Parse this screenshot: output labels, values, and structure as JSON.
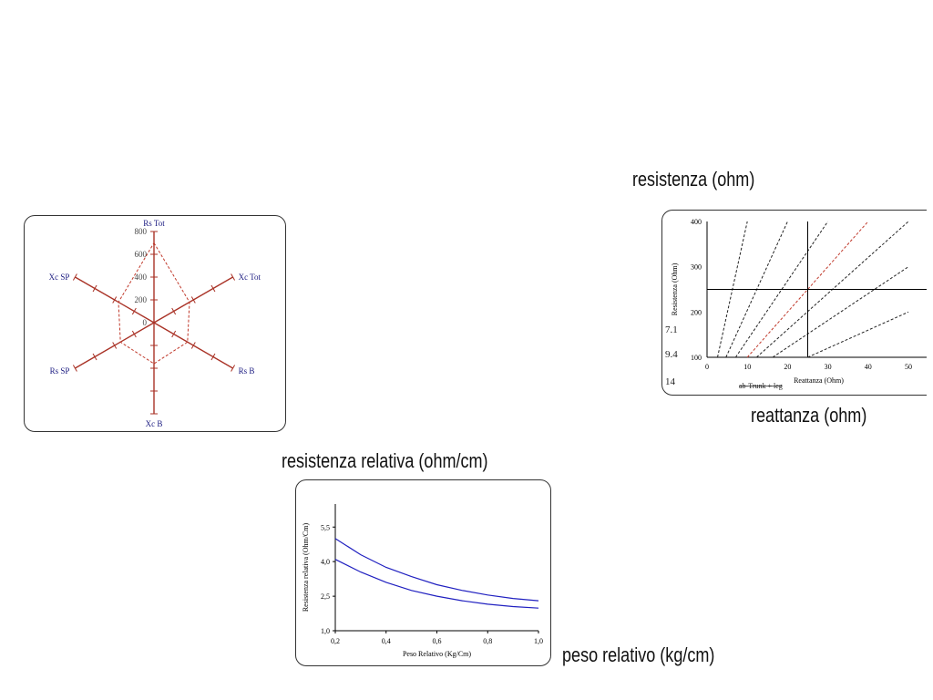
{
  "labels": {
    "resistenza": "resistenza (ohm)",
    "reattanza": "reattanza (ohm)",
    "resistenza_relativa": "resistenza relativa (ohm/cm)",
    "peso_relativo": "peso relativo (kg/cm)"
  },
  "chart_data": [
    {
      "type": "radar",
      "axes": [
        "Rs Tot",
        "Xc Tot",
        "Rs B",
        "Xc B",
        "Rs SP",
        "Xc SP"
      ],
      "tick_labels": [
        "0",
        "200",
        "400",
        "600",
        "800"
      ],
      "rlim": [
        0,
        800
      ],
      "series": [
        {
          "values": [
            700,
            360,
            340,
            360,
            340,
            360
          ],
          "color": "#c0392b",
          "style": "dashed"
        }
      ],
      "axis_color": "#a93226"
    },
    {
      "type": "line",
      "xlabel": "Reattanza (Ohm)",
      "ylabel": "Resistenza (Ohm)",
      "xlim": [
        0,
        50
      ],
      "ylim": [
        100,
        400
      ],
      "xticks": [
        "0",
        "10",
        "20",
        "30",
        "40",
        "50"
      ],
      "yticks": [
        "100",
        "200",
        "300",
        "400"
      ],
      "side_labels": [
        "7.1",
        "9.4",
        "14"
      ],
      "legend_text": "ab-Trunk + leg",
      "crosshair": {
        "x": 25,
        "y": 250
      },
      "series": [
        {
          "points": [
            [
              2.6,
              100
            ],
            [
              10,
              400
            ]
          ],
          "color": "#222",
          "style": "dashed"
        },
        {
          "points": [
            [
              4.7,
              100
            ],
            [
              20,
              400
            ]
          ],
          "color": "#222",
          "style": "dashed"
        },
        {
          "points": [
            [
              7.1,
              100
            ],
            [
              30,
              400
            ]
          ],
          "color": "#222",
          "style": "dashed"
        },
        {
          "points": [
            [
              10,
              100
            ],
            [
              40,
              400
            ]
          ],
          "color": "#c0392b",
          "style": "dashed"
        },
        {
          "points": [
            [
              12.3,
              100
            ],
            [
              50,
              400
            ]
          ],
          "color": "#222",
          "style": "dashed"
        },
        {
          "points": [
            [
              16.3,
              100
            ],
            [
              50,
              300
            ]
          ],
          "color": "#222",
          "style": "dashed"
        },
        {
          "points": [
            [
              25,
              100
            ],
            [
              50,
              200
            ]
          ],
          "color": "#222",
          "style": "dashed"
        }
      ]
    },
    {
      "type": "line",
      "xlabel": "Peso Relativo (Kg/Cm)",
      "ylabel": "Resistenza relativa (Ohm/Cm)",
      "xlim": [
        0.2,
        1.0
      ],
      "ylim": [
        1.0,
        6.5
      ],
      "xticks": [
        "0,2",
        "0,4",
        "0,6",
        "0,8",
        "1,0"
      ],
      "yticks": [
        "1,0",
        "2,5",
        "4,0",
        "5,5"
      ],
      "series": [
        {
          "x": [
            0.2,
            0.3,
            0.4,
            0.5,
            0.6,
            0.7,
            0.8,
            0.9,
            1.0
          ],
          "values": [
            5.0,
            4.3,
            3.75,
            3.35,
            3.0,
            2.75,
            2.55,
            2.4,
            2.3
          ],
          "color": "#2020c0"
        },
        {
          "x": [
            0.2,
            0.3,
            0.4,
            0.5,
            0.6,
            0.7,
            0.8,
            0.9,
            1.0
          ],
          "values": [
            4.1,
            3.55,
            3.1,
            2.75,
            2.5,
            2.3,
            2.15,
            2.05,
            1.98
          ],
          "color": "#2020c0"
        }
      ]
    }
  ]
}
